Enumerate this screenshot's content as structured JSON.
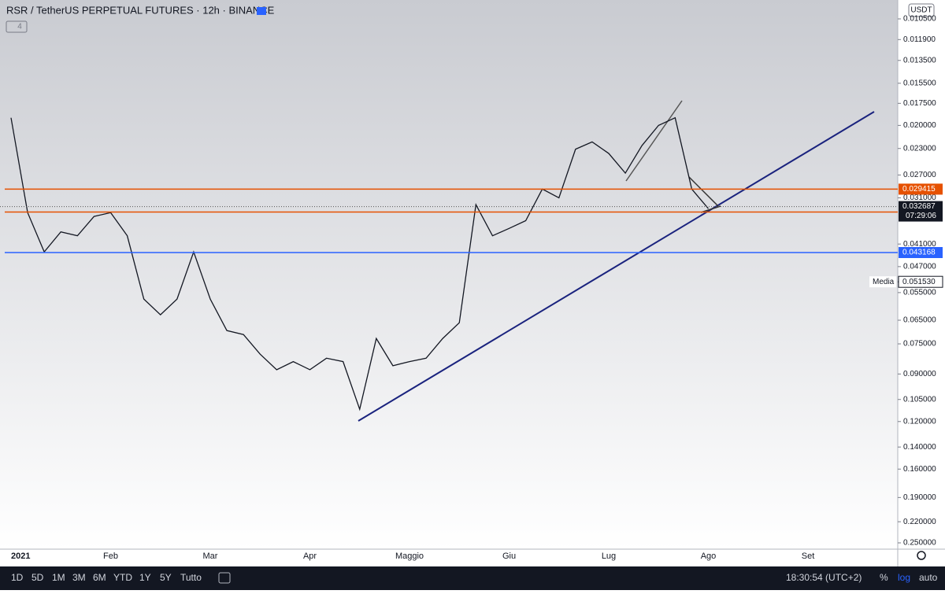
{
  "header": {
    "title": "RSR / TetherUS PERPETUAL FUTURES · 12h · BINANCE",
    "currency": "USDT",
    "indicators": "4"
  },
  "chart_data": {
    "type": "line",
    "color": "#131722",
    "log": true,
    "inverted": true,
    "categories": [
      "2021",
      null,
      null,
      null,
      null,
      null,
      "Feb",
      null,
      null,
      null,
      null,
      null,
      "Mar",
      null,
      null,
      null,
      null,
      null,
      "Apr",
      null,
      null,
      null,
      null,
      null,
      "Maggio",
      null,
      null,
      null,
      null,
      null,
      "Giu",
      null,
      null,
      null,
      null,
      null,
      "Lug",
      null,
      null,
      null,
      null,
      null,
      "Ago",
      null,
      null,
      null,
      null,
      null,
      "Set"
    ],
    "values": [
      0.0191,
      0.0339,
      0.043,
      0.0381,
      0.039,
      0.0347,
      0.0339,
      0.039,
      0.0572,
      0.0629,
      0.0572,
      0.043,
      0.0572,
      0.0692,
      0.0709,
      0.0798,
      0.0877,
      0.0835,
      0.0877,
      0.0818,
      0.0835,
      0.1114,
      0.0726,
      0.0856,
      0.0835,
      0.0818,
      0.0726,
      0.066,
      0.0323,
      0.039,
      0.0373,
      0.0356,
      0.0294,
      0.031,
      0.0231,
      0.0221,
      0.0237,
      0.0267,
      0.0226,
      0.02,
      0.0191,
      0.0294,
      0.0331,
      null,
      null,
      null,
      null,
      null,
      null
    ],
    "ylim": [
      0.0105,
      0.25
    ],
    "yticks": [
      {
        "value": 0.0105,
        "label": "0.010500"
      },
      {
        "value": 0.0119,
        "label": "0.011900"
      },
      {
        "value": 0.0135,
        "label": "0.013500"
      },
      {
        "value": 0.0155,
        "label": "0.015500"
      },
      {
        "value": 0.0175,
        "label": "0.017500"
      },
      {
        "value": 0.02,
        "label": "0.020000"
      },
      {
        "value": 0.023,
        "label": "0.023000"
      },
      {
        "value": 0.027,
        "label": "0.027000"
      },
      {
        "value": 0.031,
        "label": "0.031000"
      },
      {
        "value": 0.041,
        "label": "0.041000"
      },
      {
        "value": 0.047,
        "label": "0.047000"
      },
      {
        "value": 0.055,
        "label": "0.055000"
      },
      {
        "value": 0.065,
        "label": "0.065000"
      },
      {
        "value": 0.075,
        "label": "0.075000"
      },
      {
        "value": 0.09,
        "label": "0.090000"
      },
      {
        "value": 0.105,
        "label": "0.105000"
      },
      {
        "value": 0.12,
        "label": "0.120000"
      },
      {
        "value": 0.14,
        "label": "0.140000"
      },
      {
        "value": 0.16,
        "label": "0.160000"
      },
      {
        "value": 0.19,
        "label": "0.190000"
      },
      {
        "value": 0.22,
        "label": "0.220000"
      },
      {
        "value": 0.25,
        "label": "0.250000"
      }
    ],
    "levels": [
      {
        "value": 0.029415,
        "color": "#e65100"
      },
      {
        "value": 0.033789,
        "color": "#e65100"
      },
      {
        "value": 0.043168,
        "color": "#2962ff"
      }
    ],
    "last_price": {
      "value": 0.032687,
      "countdown": "07:29:06"
    },
    "media": {
      "name": "Media",
      "value": 0.05153,
      "value_label": "0.051530"
    }
  },
  "toolbar": {
    "ranges": [
      "1D",
      "5D",
      "1M",
      "3M",
      "6M",
      "YTD",
      "1Y",
      "5Y",
      "Tutto"
    ],
    "clock": "18:30:54 (UTC+2)",
    "percent": "%",
    "log": "log",
    "auto": "auto"
  }
}
